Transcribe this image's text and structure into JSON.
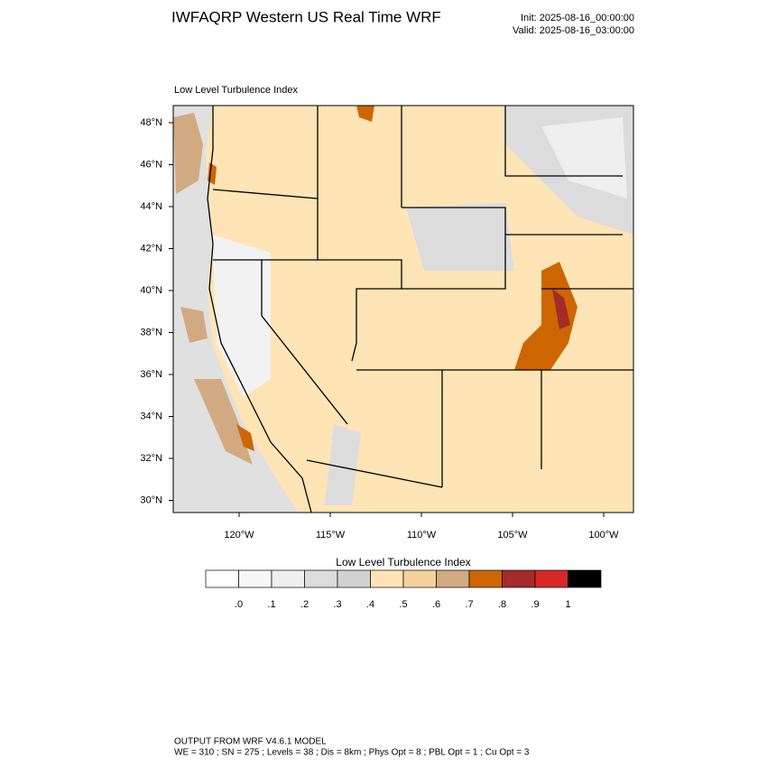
{
  "header": {
    "title": "IWFAQRP Western US Real Time WRF",
    "init": "Init: 2025-08-16_00:00:00",
    "valid": "Valid: 2025-08-16_03:00:00"
  },
  "map": {
    "title": "Low Level Turbulence Index",
    "lat_labels": [
      "48°N",
      "46°N",
      "44°N",
      "42°N",
      "40°N",
      "38°N",
      "36°N",
      "34°N",
      "32°N",
      "30°N"
    ],
    "lon_labels": [
      "120°W",
      "115°W",
      "110°W",
      "105°W",
      "100°W"
    ]
  },
  "colorbar": {
    "title": "Low Level Turbulence Index",
    "colors": [
      "#ffffff",
      "#f7f7f7",
      "#efefef",
      "#dcdcdc",
      "#d2d2d2",
      "#ffe4b5",
      "#f5d29c",
      "#d2aa82",
      "#cd6600",
      "#a52a2a",
      "#d72828",
      "#000000"
    ],
    "labels": [
      ".0",
      ".1",
      ".2",
      ".3",
      ".4",
      ".5",
      ".6",
      ".7",
      ".8",
      ".9",
      "1"
    ]
  },
  "footer": {
    "line1": "OUTPUT FROM WRF V4.6.1 MODEL",
    "line2": "WE = 310 ; SN = 275 ; Levels = 38 ; Dis = 8km ; Phys Opt = 8 ; PBL Opt = 1 ; Cu Opt = 3"
  }
}
